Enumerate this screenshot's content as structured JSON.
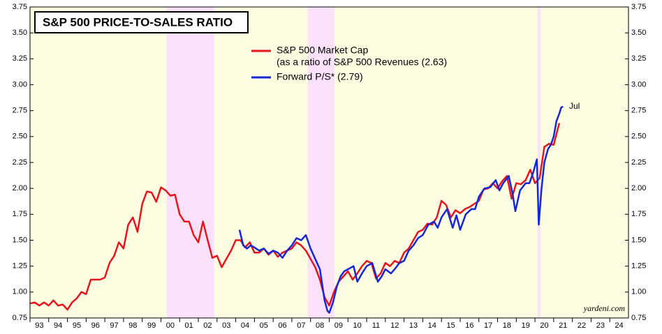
{
  "chart_data": {
    "type": "line",
    "title": "S&P 500 PRICE-TO-SALES RATIO",
    "source": "yardeni.com",
    "annotation": "Jul",
    "xlim": [
      1993,
      2025
    ],
    "categories": [
      "93",
      "94",
      "95",
      "96",
      "97",
      "98",
      "99",
      "00",
      "01",
      "02",
      "03",
      "04",
      "05",
      "06",
      "07",
      "08",
      "09",
      "10",
      "11",
      "12",
      "13",
      "14",
      "15",
      "16",
      "17",
      "18",
      "19",
      "20",
      "21",
      "22",
      "23",
      "24"
    ],
    "ylim": [
      0.75,
      3.75
    ],
    "yticks": [
      3.75,
      {
        "value": 3.5,
        "label": "3.50"
      },
      3.25,
      {
        "value": 3,
        "label": "3.00"
      },
      2.75,
      {
        "value": 2.5,
        "label": "2.50"
      },
      2.25,
      {
        "value": 2,
        "label": "2.00"
      },
      1.75,
      {
        "value": 1.5,
        "label": "1.50"
      },
      1.25,
      {
        "value": 1,
        "label": "1.00"
      },
      0.75
    ],
    "grid": false,
    "background": "#fdfde1",
    "shade_color": "#fce1fb",
    "shaded_periods": [
      [
        2000.3,
        2002.85
      ],
      [
        2007.85,
        2009.27
      ],
      [
        2020.15,
        2020.3
      ]
    ],
    "series": [
      {
        "name": "S&P 500 Market Cap",
        "name_note": "(as a ratio of S&P 500 Revenues (2.63)",
        "color": "#e8141c",
        "x": [
          1993,
          1993.25,
          1993.5,
          1993.75,
          1994,
          1994.25,
          1994.5,
          1994.75,
          1995,
          1995.25,
          1995.5,
          1995.75,
          1996,
          1996.25,
          1996.5,
          1996.75,
          1997,
          1997.25,
          1997.5,
          1997.75,
          1998,
          1998.25,
          1998.5,
          1998.75,
          1999,
          1999.25,
          1999.5,
          1999.75,
          2000,
          2000.25,
          2000.5,
          2000.75,
          2001,
          2001.25,
          2001.5,
          2001.75,
          2002,
          2002.25,
          2002.5,
          2002.75,
          2003,
          2003.25,
          2003.5,
          2003.75,
          2004,
          2004.25,
          2004.5,
          2004.75,
          2005,
          2005.25,
          2005.5,
          2005.75,
          2006,
          2006.25,
          2006.5,
          2006.75,
          2007,
          2007.25,
          2007.5,
          2007.75,
          2008,
          2008.25,
          2008.5,
          2008.75,
          2009,
          2009.25,
          2009.5,
          2009.75,
          2010,
          2010.25,
          2010.5,
          2010.75,
          2011,
          2011.25,
          2011.5,
          2011.75,
          2012,
          2012.25,
          2012.5,
          2012.75,
          2013,
          2013.25,
          2013.5,
          2013.75,
          2014,
          2014.25,
          2014.5,
          2014.75,
          2015,
          2015.25,
          2015.5,
          2015.75,
          2016,
          2016.25,
          2016.5,
          2016.75,
          2017,
          2017.25,
          2017.5,
          2017.75,
          2018,
          2018.25,
          2018.5,
          2018.75,
          2019,
          2019.25,
          2019.5,
          2019.75,
          2020,
          2020.25,
          2020.5,
          2020.75,
          2021,
          2021.3
        ],
        "values": [
          0.89,
          0.9,
          0.87,
          0.9,
          0.87,
          0.92,
          0.87,
          0.88,
          0.83,
          0.9,
          0.94,
          1.0,
          0.98,
          1.12,
          1.12,
          1.12,
          1.14,
          1.28,
          1.35,
          1.48,
          1.42,
          1.65,
          1.72,
          1.58,
          1.85,
          1.97,
          1.96,
          1.87,
          2.01,
          1.98,
          1.93,
          1.94,
          1.75,
          1.68,
          1.68,
          1.55,
          1.48,
          1.68,
          1.5,
          1.33,
          1.35,
          1.24,
          1.32,
          1.4,
          1.5,
          1.5,
          1.43,
          1.48,
          1.38,
          1.38,
          1.42,
          1.36,
          1.4,
          1.34,
          1.38,
          1.4,
          1.42,
          1.48,
          1.45,
          1.4,
          1.32,
          1.24,
          1.12,
          0.95,
          0.87,
          1.0,
          1.1,
          1.15,
          1.2,
          1.12,
          1.18,
          1.25,
          1.3,
          1.28,
          1.13,
          1.18,
          1.28,
          1.25,
          1.3,
          1.28,
          1.38,
          1.42,
          1.5,
          1.58,
          1.6,
          1.66,
          1.65,
          1.72,
          1.88,
          1.84,
          1.72,
          1.79,
          1.76,
          1.8,
          1.82,
          1.85,
          1.88,
          1.99,
          2.0,
          2.05,
          2.0,
          2.07,
          2.12,
          1.9,
          2.05,
          2.04,
          2.08,
          2.18,
          2.05,
          2.1,
          2.4,
          2.43,
          2.42,
          2.63
        ]
      },
      {
        "name": "Forward P/S* (2.79)",
        "color": "#1428d8",
        "x": [
          2004.2,
          2004.4,
          2004.6,
          2004.8,
          2005,
          2005.25,
          2005.5,
          2005.75,
          2006,
          2006.25,
          2006.5,
          2006.75,
          2007,
          2007.25,
          2007.5,
          2007.75,
          2008,
          2008.25,
          2008.5,
          2008.75,
          2008.9,
          2009,
          2009.2,
          2009.4,
          2009.6,
          2009.8,
          2010,
          2010.3,
          2010.5,
          2010.75,
          2011,
          2011.3,
          2011.6,
          2011.8,
          2012,
          2012.3,
          2012.5,
          2012.75,
          2013,
          2013.25,
          2013.5,
          2013.75,
          2014,
          2014.3,
          2014.6,
          2014.8,
          2015,
          2015.3,
          2015.6,
          2015.8,
          2016,
          2016.3,
          2016.6,
          2016.8,
          2017,
          2017.3,
          2017.6,
          2017.9,
          2018.1,
          2018.3,
          2018.6,
          2018.8,
          2018.95,
          2019.2,
          2019.5,
          2019.7,
          2019.9,
          2020.1,
          2020.2,
          2020.35,
          2020.5,
          2020.7,
          2020.85,
          2021,
          2021.15,
          2021.3,
          2021.4,
          2021.5
        ],
        "values": [
          1.6,
          1.45,
          1.42,
          1.45,
          1.43,
          1.4,
          1.42,
          1.37,
          1.4,
          1.38,
          1.33,
          1.4,
          1.45,
          1.52,
          1.5,
          1.55,
          1.42,
          1.32,
          1.22,
          0.92,
          0.82,
          0.8,
          0.9,
          1.05,
          1.15,
          1.2,
          1.22,
          1.25,
          1.1,
          1.18,
          1.25,
          1.28,
          1.1,
          1.15,
          1.22,
          1.18,
          1.22,
          1.28,
          1.3,
          1.4,
          1.45,
          1.52,
          1.55,
          1.65,
          1.68,
          1.62,
          1.72,
          1.8,
          1.62,
          1.74,
          1.6,
          1.75,
          1.8,
          1.8,
          1.92,
          2.0,
          2.01,
          2.08,
          1.98,
          2.05,
          2.12,
          1.95,
          1.78,
          1.98,
          2.05,
          2.05,
          2.15,
          2.28,
          1.65,
          2.0,
          2.25,
          2.38,
          2.42,
          2.5,
          2.65,
          2.72,
          2.78,
          2.79
        ]
      }
    ]
  }
}
